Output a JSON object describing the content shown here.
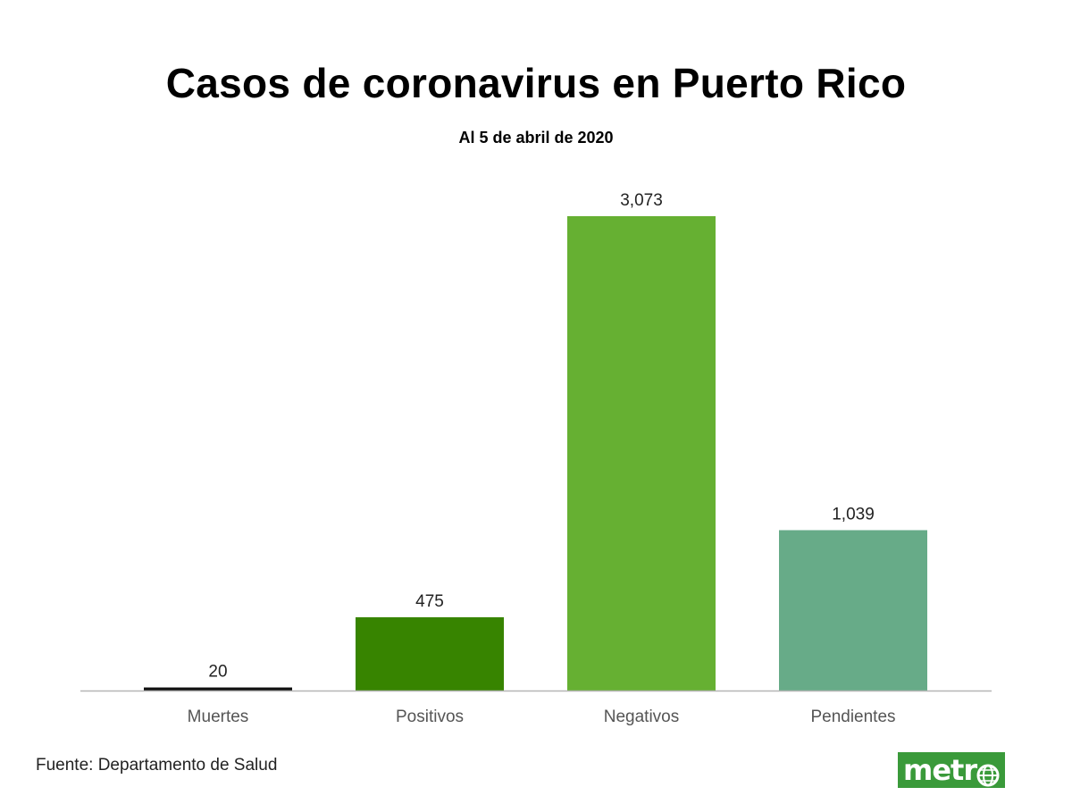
{
  "title": "Casos de coronavirus en Puerto Rico",
  "subtitle": "Al 5 de abril de 2020",
  "source": "Fuente: Departamento de Salud",
  "logo_text": "metr",
  "colors": {
    "muertes": "#111111",
    "positivos": "#378400",
    "negativos": "#66b032",
    "pendientes": "#67ab88",
    "baseline": "#b5b5b5",
    "logo": "#3a9a3a"
  },
  "chart_data": {
    "type": "bar",
    "categories": [
      "Muertes",
      "Positivos",
      "Negativos",
      "Pendientes"
    ],
    "values": [
      20,
      475,
      3073,
      1039
    ],
    "value_labels": [
      "20",
      "475",
      "3,073",
      "1,039"
    ],
    "bar_colors": [
      "#111111",
      "#378400",
      "#66b032",
      "#67ab88"
    ],
    "title": "Casos de coronavirus en Puerto Rico",
    "subtitle": "Al 5 de abril de 2020",
    "xlabel": "",
    "ylabel": "",
    "ylim": [
      0,
      3073
    ],
    "grid": false,
    "legend": false
  }
}
